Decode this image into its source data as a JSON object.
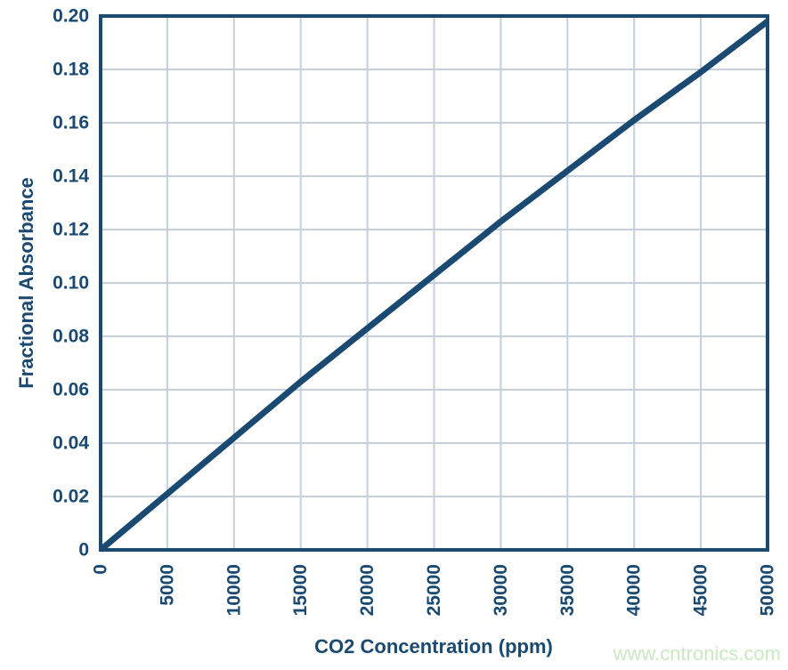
{
  "watermark": {
    "text": "www.cntronics.com",
    "color": "#cae9c3"
  },
  "chart_data": {
    "type": "line",
    "title": "",
    "xlabel": "CO2 Concentration (ppm)",
    "ylabel": "Fractional Absorbance",
    "x": [
      0,
      5000,
      10000,
      15000,
      20000,
      25000,
      30000,
      35000,
      40000,
      45000,
      50000
    ],
    "series": [
      {
        "name": "Fractional Absorbance",
        "values": [
          0,
          0.021,
          0.042,
          0.063,
          0.083,
          0.103,
          0.123,
          0.142,
          0.161,
          0.179,
          0.198
        ]
      }
    ],
    "xlim": [
      0,
      50000
    ],
    "ylim": [
      0,
      0.2
    ],
    "xticks": [
      0,
      5000,
      10000,
      15000,
      20000,
      25000,
      30000,
      35000,
      40000,
      45000,
      50000
    ],
    "xtick_labels": [
      "0",
      "5000",
      "10000",
      "15000",
      "20000",
      "25000",
      "30000",
      "35000",
      "40000",
      "45000",
      "50000"
    ],
    "yticks": [
      0,
      0.02,
      0.04,
      0.06,
      0.08,
      0.1,
      0.12,
      0.14,
      0.16,
      0.18,
      0.2
    ],
    "ytick_labels": [
      "0",
      "0.02",
      "0.04",
      "0.06",
      "0.08",
      "0.10",
      "0.12",
      "0.14",
      "0.16",
      "0.18",
      "0.20"
    ],
    "grid": true,
    "legend_position": "none",
    "colors": {
      "line": "#1a4971",
      "grid": "#c5cfdd",
      "axis": "#1a4971",
      "labels": "#1a4971"
    }
  }
}
